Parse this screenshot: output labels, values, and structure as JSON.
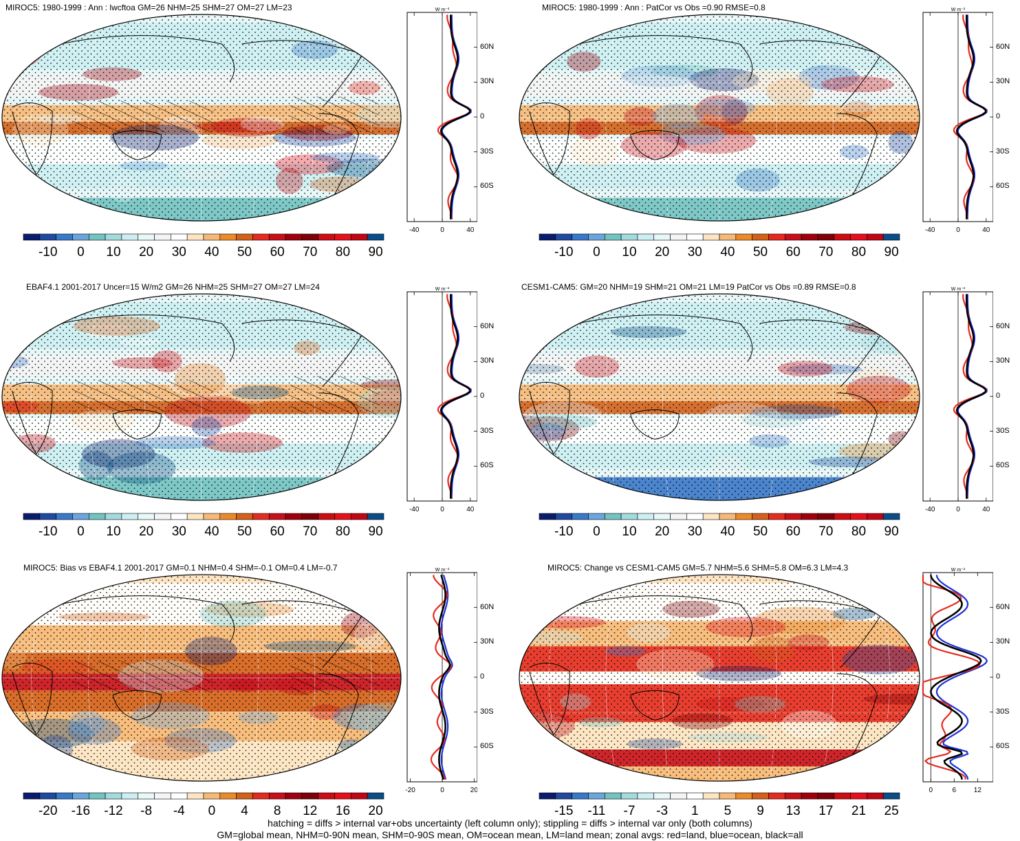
{
  "panels": [
    {
      "id": "p1",
      "title": "MIROC5: 1980-1999 : Ann : lwcftoa GM=26 NHM=25 SHM=27 OM=27 LM=23",
      "colorbar": {
        "labels": [
          "-10",
          "0",
          "10",
          "20",
          "30",
          "40",
          "50",
          "60",
          "70",
          "80",
          "90"
        ],
        "kind": "abs"
      },
      "zonal": {
        "xticks": [
          "-40",
          "0",
          "40"
        ],
        "xrange": [
          -50,
          50
        ],
        "yticks": [
          "60N",
          "30N",
          "0",
          "30S",
          "60S"
        ],
        "unit": "W m⁻²",
        "hatch": true,
        "kind": "abs"
      }
    },
    {
      "id": "p2",
      "title": "MIROC5: 1980-1999 : Ann : PatCor vs Obs =0.90 RMSE=0.8",
      "colorbar": {
        "labels": [
          "-10",
          "0",
          "10",
          "20",
          "30",
          "40",
          "50",
          "60",
          "70",
          "80",
          "90"
        ],
        "kind": "abs"
      },
      "zonal": {
        "xticks": [
          "-40",
          "0",
          "40"
        ],
        "xrange": [
          -50,
          50
        ],
        "yticks": [
          "60N",
          "30N",
          "0",
          "30S",
          "60S"
        ],
        "unit": "W m⁻²",
        "hatch": false,
        "kind": "abs"
      }
    },
    {
      "id": "p3",
      "title": "EBAF4.1 2001-2017 Uncer=15 W/m2 GM=26 NHM=25 SHM=27 OM=27 LM=24",
      "colorbar": {
        "labels": [
          "-10",
          "0",
          "10",
          "20",
          "30",
          "40",
          "50",
          "60",
          "70",
          "80",
          "90"
        ],
        "kind": "abs"
      },
      "zonal": {
        "xticks": [
          "-40",
          "0",
          "40"
        ],
        "xrange": [
          -50,
          50
        ],
        "yticks": [
          "60N",
          "30N",
          "0",
          "30S",
          "60S"
        ],
        "unit": "W m⁻²",
        "hatch": true,
        "kind": "abs"
      }
    },
    {
      "id": "p4",
      "title": "CESM1-CAM5: GM=20 NHM=19 SHM=21 OM=21 LM=19 PatCor vs Obs =0.89 RMSE=0.8",
      "colorbar": {
        "labels": [
          "-10",
          "0",
          "10",
          "20",
          "30",
          "40",
          "50",
          "60",
          "70",
          "80",
          "90"
        ],
        "kind": "abs"
      },
      "zonal": {
        "xticks": [
          "-40",
          "0",
          "40"
        ],
        "xrange": [
          -50,
          50
        ],
        "yticks": [
          "60N",
          "30N",
          "0",
          "30S",
          "60S"
        ],
        "unit": "W m⁻²",
        "hatch": false,
        "kind": "abs"
      }
    },
    {
      "id": "p5",
      "title": "MIROC5: Bias vs EBAF4.1 2001-2017 GM=0.1 NHM=0.4 SHM=-0.1 OM=0.4 LM=-0.7",
      "colorbar": {
        "labels": [
          "-20",
          "-16",
          "-12",
          "-8",
          "-4",
          "0",
          "4",
          "8",
          "12",
          "16",
          "20"
        ],
        "kind": "bias"
      },
      "zonal": {
        "xticks": [
          "-20",
          "0",
          "20"
        ],
        "xrange": [
          -22,
          22
        ],
        "yticks": [
          "60N",
          "30N",
          "0",
          "30S",
          "60S"
        ],
        "unit": "W m⁻²",
        "hatch": true,
        "kind": "bias"
      }
    },
    {
      "id": "p6",
      "title": "MIROC5: Change vs CESM1-CAM5 GM=5.7 NHM=5.6 SHM=5.8 OM=6.3 LM=4.3",
      "colorbar": {
        "labels": [
          "-15",
          "-11",
          "-7",
          "-3",
          "1",
          "5",
          "9",
          "13",
          "17",
          "21",
          "25"
        ],
        "kind": "change"
      },
      "zonal": {
        "xticks": [
          "0",
          "6",
          "12"
        ],
        "xrange": [
          -2,
          16
        ],
        "yticks": [
          "60N",
          "30N",
          "0",
          "30S",
          "60S"
        ],
        "unit": "W m⁻²",
        "hatch": false,
        "kind": "change"
      }
    }
  ],
  "colors": {
    "palette": [
      "#0a1c6e",
      "#1f4aa0",
      "#3a78c8",
      "#6aa6dc",
      "#72c3c1",
      "#a3dadc",
      "#cdeff2",
      "#e8f7f8",
      "#f4f4f4",
      "#ffffff",
      "#fde5c4",
      "#f7b977",
      "#ec8a2b",
      "#d46119",
      "#e52b1f",
      "#c8101a",
      "#a0000d",
      "#7f0008",
      "#cc0d13",
      "#e60f1c",
      "#c10615",
      "#0a4d88"
    ],
    "land": "#e62b1f",
    "ocean": "#1b2fd6",
    "all": "#000000"
  },
  "footer": {
    "line1": "hatching = diffs > internal var+obs uncertainty (left column only); stippling = diffs > internal var only (both columns)",
    "line2": "GM=global mean, NHM=0-90N mean, SHM=0-90S mean, OM=ocean mean, LM=land mean; zonal avgs: red=land, blue=ocean, black=all"
  }
}
